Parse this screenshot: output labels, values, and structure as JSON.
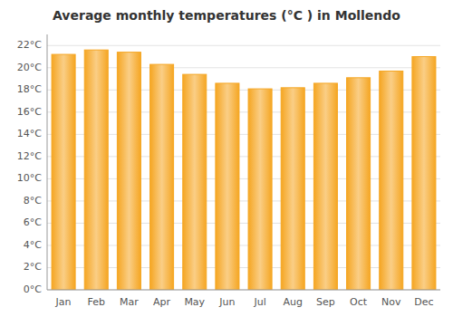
{
  "chart_data": {
    "type": "bar",
    "title": "Average monthly temperatures (°C ) in Mollendo",
    "categories": [
      "Jan",
      "Feb",
      "Mar",
      "Apr",
      "May",
      "Jun",
      "Jul",
      "Aug",
      "Sep",
      "Oct",
      "Nov",
      "Dec"
    ],
    "values": [
      21.2,
      21.6,
      21.4,
      20.3,
      19.4,
      18.6,
      18.1,
      18.2,
      18.6,
      19.1,
      19.7,
      21.0
    ],
    "color": "#F5A623",
    "ylim": [
      0,
      23
    ],
    "yticks": [
      {
        "value": 0,
        "label": "0°C"
      },
      {
        "value": 2,
        "label": "2°C"
      },
      {
        "value": 4,
        "label": "4°C"
      },
      {
        "value": 6,
        "label": "6°C"
      },
      {
        "value": 8,
        "label": "8°C"
      },
      {
        "value": 10,
        "label": "10°C"
      },
      {
        "value": 12,
        "label": "12°C"
      },
      {
        "value": 14,
        "label": "14°C"
      },
      {
        "value": 16,
        "label": "16°C"
      },
      {
        "value": 18,
        "label": "18°C"
      },
      {
        "value": 20,
        "label": "20°C"
      },
      {
        "value": 22,
        "label": "22°C"
      }
    ],
    "grid": true
  }
}
